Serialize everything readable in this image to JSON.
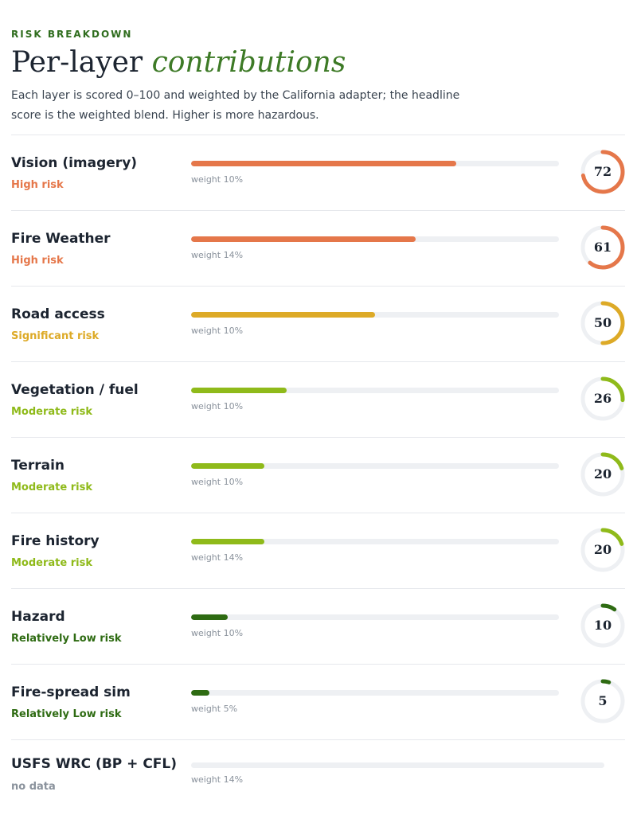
{
  "header": {
    "eyebrow": "RISK BREAKDOWN",
    "title_plain": "Per-layer",
    "title_italic": "contributions",
    "description": "Each layer is scored 0–100 and weighted by the California adapter; the headline score is the weighted blend. Higher is more hazardous."
  },
  "colors": {
    "high": "#e5774a",
    "significant": "#ddaa27",
    "moderate": "#8fba1a",
    "low": "#2e6b12",
    "nodata": "#8a929c",
    "track": "#eef0f3"
  },
  "layers": [
    {
      "name": "Vision (imagery)",
      "level": "High risk",
      "tier": "high",
      "score": 72,
      "score_label": "72",
      "weight": "weight 10%"
    },
    {
      "name": "Fire Weather",
      "level": "High risk",
      "tier": "high",
      "score": 61,
      "score_label": "61",
      "weight": "weight 14%"
    },
    {
      "name": "Road access",
      "level": "Significant risk",
      "tier": "significant",
      "score": 50,
      "score_label": "50",
      "weight": "weight 10%"
    },
    {
      "name": "Vegetation / fuel",
      "level": "Moderate risk",
      "tier": "moderate",
      "score": 26,
      "score_label": "26",
      "weight": "weight 10%"
    },
    {
      "name": "Terrain",
      "level": "Moderate risk",
      "tier": "moderate",
      "score": 20,
      "score_label": "20",
      "weight": "weight 10%"
    },
    {
      "name": "Fire history",
      "level": "Moderate risk",
      "tier": "moderate",
      "score": 20,
      "score_label": "20",
      "weight": "weight 14%"
    },
    {
      "name": "Hazard",
      "level": "Relatively Low risk",
      "tier": "low",
      "score": 10,
      "score_label": "10",
      "weight": "weight 10%"
    },
    {
      "name": "Fire-spread sim",
      "level": "Relatively Low risk",
      "tier": "low",
      "score": 5,
      "score_label": "5",
      "weight": "weight 5%"
    },
    {
      "name": "USFS WRC (BP + CFL)",
      "level": "no data",
      "tier": "nodata",
      "score": null,
      "score_label": "",
      "weight": "weight 14%"
    }
  ]
}
